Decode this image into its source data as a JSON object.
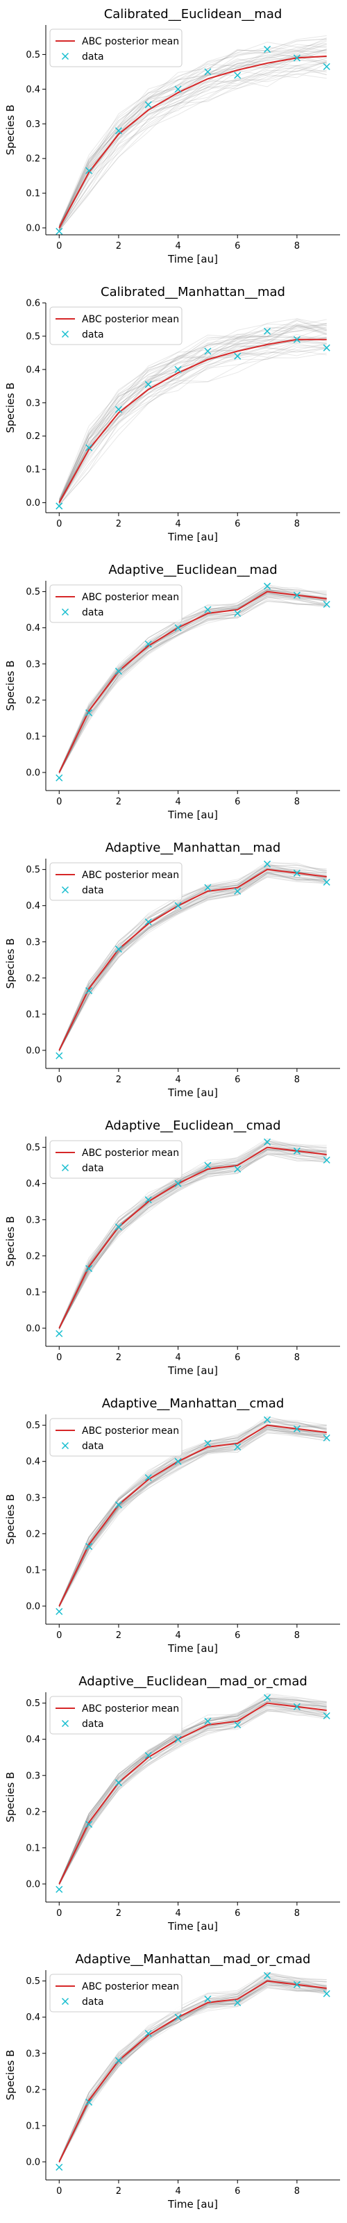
{
  "legend": {
    "line_label": "ABC posterior mean",
    "data_label": "data",
    "placement": "upper-left"
  },
  "colors": {
    "line": "#d62728",
    "data": "#17becf",
    "bands": "#808080"
  },
  "chart_data": [
    {
      "type": "line",
      "title": "Calibrated__Euclidean__mad",
      "xlabel": "Time [au]",
      "ylabel": "Species B",
      "xlim": [
        -0.45,
        9.45
      ],
      "ylim": [
        -0.02,
        0.585
      ],
      "xticks": [
        0,
        2,
        4,
        6,
        8
      ],
      "yticks": [
        0.0,
        0.1,
        0.2,
        0.3,
        0.4,
        0.5
      ],
      "x": [
        0,
        1,
        2,
        3,
        4,
        5,
        6,
        7,
        8,
        9
      ],
      "posterior_mean": [
        0.0,
        0.16,
        0.27,
        0.34,
        0.39,
        0.43,
        0.455,
        0.475,
        0.49,
        0.495
      ],
      "data": [
        -0.01,
        0.165,
        0.28,
        0.355,
        0.4,
        0.45,
        0.44,
        0.515,
        0.49,
        0.465
      ],
      "band_spread": 0.06
    },
    {
      "type": "line",
      "title": "Calibrated__Manhattan__mad",
      "xlabel": "Time [au]",
      "ylabel": "Species B",
      "xlim": [
        -0.45,
        9.45
      ],
      "ylim": [
        -0.03,
        0.6
      ],
      "xticks": [
        0,
        2,
        4,
        6,
        8
      ],
      "yticks": [
        0.0,
        0.1,
        0.2,
        0.3,
        0.4,
        0.5,
        0.6
      ],
      "x": [
        0,
        1,
        2,
        3,
        4,
        5,
        6,
        7,
        8,
        9
      ],
      "posterior_mean": [
        0.0,
        0.16,
        0.27,
        0.34,
        0.39,
        0.43,
        0.455,
        0.475,
        0.49,
        0.49
      ],
      "data": [
        -0.01,
        0.165,
        0.28,
        0.355,
        0.4,
        0.455,
        0.44,
        0.515,
        0.49,
        0.465
      ],
      "band_spread": 0.07
    },
    {
      "type": "line",
      "title": "Adaptive__Euclidean__mad",
      "xlabel": "Time [au]",
      "ylabel": "Species B",
      "xlim": [
        -0.45,
        9.45
      ],
      "ylim": [
        -0.05,
        0.53
      ],
      "xticks": [
        0,
        2,
        4,
        6,
        8
      ],
      "yticks": [
        0.0,
        0.1,
        0.2,
        0.3,
        0.4,
        0.5
      ],
      "x": [
        0,
        1,
        2,
        3,
        4,
        5,
        6,
        7,
        8,
        9
      ],
      "posterior_mean": [
        0.0,
        0.17,
        0.28,
        0.35,
        0.4,
        0.44,
        0.45,
        0.5,
        0.49,
        0.48
      ],
      "data": [
        -0.015,
        0.165,
        0.28,
        0.355,
        0.4,
        0.45,
        0.44,
        0.515,
        0.49,
        0.465
      ],
      "band_spread": 0.025
    },
    {
      "type": "line",
      "title": "Adaptive__Manhattan__mad",
      "xlabel": "Time [au]",
      "ylabel": "Species B",
      "xlim": [
        -0.45,
        9.45
      ],
      "ylim": [
        -0.05,
        0.53
      ],
      "xticks": [
        0,
        2,
        4,
        6,
        8
      ],
      "yticks": [
        0.0,
        0.1,
        0.2,
        0.3,
        0.4,
        0.5
      ],
      "x": [
        0,
        1,
        2,
        3,
        4,
        5,
        6,
        7,
        8,
        9
      ],
      "posterior_mean": [
        0.0,
        0.17,
        0.28,
        0.35,
        0.4,
        0.44,
        0.45,
        0.5,
        0.49,
        0.48
      ],
      "data": [
        -0.015,
        0.165,
        0.28,
        0.355,
        0.4,
        0.45,
        0.44,
        0.515,
        0.49,
        0.465
      ],
      "band_spread": 0.025
    },
    {
      "type": "line",
      "title": "Adaptive__Euclidean__cmad",
      "xlabel": "Time [au]",
      "ylabel": "Species B",
      "xlim": [
        -0.45,
        9.45
      ],
      "ylim": [
        -0.05,
        0.53
      ],
      "xticks": [
        0,
        2,
        4,
        6,
        8
      ],
      "yticks": [
        0.0,
        0.1,
        0.2,
        0.3,
        0.4,
        0.5
      ],
      "x": [
        0,
        1,
        2,
        3,
        4,
        5,
        6,
        7,
        8,
        9
      ],
      "posterior_mean": [
        0.0,
        0.17,
        0.28,
        0.35,
        0.4,
        0.44,
        0.45,
        0.5,
        0.49,
        0.48
      ],
      "data": [
        -0.015,
        0.165,
        0.28,
        0.355,
        0.4,
        0.45,
        0.44,
        0.515,
        0.49,
        0.465
      ],
      "band_spread": 0.025
    },
    {
      "type": "line",
      "title": "Adaptive__Manhattan__cmad",
      "xlabel": "Time [au]",
      "ylabel": "Species B",
      "xlim": [
        -0.45,
        9.45
      ],
      "ylim": [
        -0.05,
        0.53
      ],
      "xticks": [
        0,
        2,
        4,
        6,
        8
      ],
      "yticks": [
        0.0,
        0.1,
        0.2,
        0.3,
        0.4,
        0.5
      ],
      "x": [
        0,
        1,
        2,
        3,
        4,
        5,
        6,
        7,
        8,
        9
      ],
      "posterior_mean": [
        0.0,
        0.17,
        0.28,
        0.35,
        0.4,
        0.44,
        0.45,
        0.5,
        0.49,
        0.48
      ],
      "data": [
        -0.015,
        0.165,
        0.28,
        0.355,
        0.4,
        0.45,
        0.44,
        0.515,
        0.49,
        0.465
      ],
      "band_spread": 0.025
    },
    {
      "type": "line",
      "title": "Adaptive__Euclidean__mad_or_cmad",
      "xlabel": "Time [au]",
      "ylabel": "Species B",
      "xlim": [
        -0.45,
        9.45
      ],
      "ylim": [
        -0.05,
        0.53
      ],
      "xticks": [
        0,
        2,
        4,
        6,
        8
      ],
      "yticks": [
        0.0,
        0.1,
        0.2,
        0.3,
        0.4,
        0.5
      ],
      "x": [
        0,
        1,
        2,
        3,
        4,
        5,
        6,
        7,
        8,
        9
      ],
      "posterior_mean": [
        0.0,
        0.17,
        0.28,
        0.35,
        0.4,
        0.44,
        0.45,
        0.5,
        0.49,
        0.48
      ],
      "data": [
        -0.015,
        0.165,
        0.28,
        0.355,
        0.4,
        0.45,
        0.44,
        0.515,
        0.49,
        0.465
      ],
      "band_spread": 0.025
    },
    {
      "type": "line",
      "title": "Adaptive__Manhattan__mad_or_cmad",
      "xlabel": "Time [au]",
      "ylabel": "Species B",
      "xlim": [
        -0.45,
        9.45
      ],
      "ylim": [
        -0.05,
        0.53
      ],
      "xticks": [
        0,
        2,
        4,
        6,
        8
      ],
      "yticks": [
        0.0,
        0.1,
        0.2,
        0.3,
        0.4,
        0.5
      ],
      "x": [
        0,
        1,
        2,
        3,
        4,
        5,
        6,
        7,
        8,
        9
      ],
      "posterior_mean": [
        0.0,
        0.17,
        0.28,
        0.35,
        0.4,
        0.44,
        0.45,
        0.5,
        0.49,
        0.48
      ],
      "data": [
        -0.015,
        0.165,
        0.28,
        0.355,
        0.4,
        0.45,
        0.44,
        0.515,
        0.49,
        0.465
      ],
      "band_spread": 0.025
    }
  ]
}
